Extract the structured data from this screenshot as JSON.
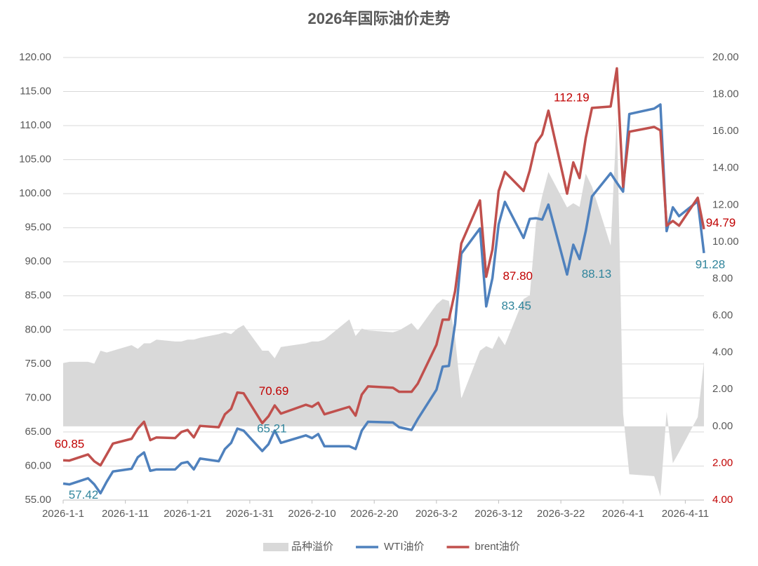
{
  "chart_data": {
    "type": "line",
    "title": "2026年国际油价走势",
    "xlim": [
      "2026-1-1",
      "2026-4-14"
    ],
    "xticks": [
      "2026-1-1",
      "2026-1-11",
      "2026-1-21",
      "2026-1-31",
      "2026-2-10",
      "2026-2-20",
      "2026-3-2",
      "2026-3-12",
      "2026-3-22",
      "2026-4-1",
      "2026-4-11"
    ],
    "ylim": [
      55,
      120
    ],
    "yticks": [
      {
        "value": 55,
        "label": "55.00"
      },
      {
        "value": 60,
        "label": "60.00"
      },
      {
        "value": 65,
        "label": "65.00"
      },
      {
        "value": 70,
        "label": "70.00"
      },
      {
        "value": 75,
        "label": "75.00"
      },
      {
        "value": 80,
        "label": "80.00"
      },
      {
        "value": 85,
        "label": "85.00"
      },
      {
        "value": 90,
        "label": "90.00"
      },
      {
        "value": 95,
        "label": "95.00"
      },
      {
        "value": 100,
        "label": "100.00"
      },
      {
        "value": 105,
        "label": "105.00"
      },
      {
        "value": 110,
        "label": "110.00"
      },
      {
        "value": 115,
        "label": "115.00"
      },
      {
        "value": 120,
        "label": "120.00"
      }
    ],
    "y2lim": [
      -4,
      20
    ],
    "y2ticks": [
      {
        "value": -4,
        "label": "4.00"
      },
      {
        "value": -2,
        "label": "2.00"
      },
      {
        "value": 0,
        "label": "0.00"
      },
      {
        "value": 2,
        "label": "2.00"
      },
      {
        "value": 4,
        "label": "4.00"
      },
      {
        "value": 6,
        "label": "6.00"
      },
      {
        "value": 8,
        "label": "8.00"
      },
      {
        "value": 10,
        "label": "10.00"
      },
      {
        "value": 12,
        "label": "12.00"
      },
      {
        "value": 14,
        "label": "14.00"
      },
      {
        "value": 16,
        "label": "16.00"
      },
      {
        "value": 18,
        "label": "18.00"
      },
      {
        "value": 20,
        "label": "20.00"
      }
    ],
    "y2_negative_color": "#c00000",
    "grid": true,
    "legend": "bottom",
    "x": [
      "2026-1-1",
      "2026-1-2",
      "2026-1-5",
      "2026-1-6",
      "2026-1-7",
      "2026-1-8",
      "2026-1-9",
      "2026-1-12",
      "2026-1-13",
      "2026-1-14",
      "2026-1-15",
      "2026-1-16",
      "2026-1-19",
      "2026-1-20",
      "2026-1-21",
      "2026-1-22",
      "2026-1-23",
      "2026-1-26",
      "2026-1-27",
      "2026-1-28",
      "2026-1-29",
      "2026-1-30",
      "2026-2-2",
      "2026-2-3",
      "2026-2-4",
      "2026-2-5",
      "2026-2-9",
      "2026-2-10",
      "2026-2-11",
      "2026-2-12",
      "2026-2-16",
      "2026-2-17",
      "2026-2-18",
      "2026-2-19",
      "2026-2-23",
      "2026-2-24",
      "2026-2-26",
      "2026-2-27",
      "2026-3-2",
      "2026-3-3",
      "2026-3-4",
      "2026-3-5",
      "2026-3-6",
      "2026-3-9",
      "2026-3-10",
      "2026-3-11",
      "2026-3-12",
      "2026-3-13",
      "2026-3-16",
      "2026-3-17",
      "2026-3-18",
      "2026-3-19",
      "2026-3-20",
      "2026-3-23",
      "2026-3-24",
      "2026-3-25",
      "2026-3-26",
      "2026-3-27",
      "2026-3-30",
      "2026-3-31",
      "2026-4-1",
      "2026-4-2",
      "2026-4-6",
      "2026-4-7",
      "2026-4-8",
      "2026-4-9",
      "2026-4-10",
      "2026-4-13",
      "2026-4-14"
    ],
    "series": [
      {
        "name": "品种溢价",
        "type": "area",
        "axis": "y2",
        "color": "#d9d9d9",
        "values": [
          3.43,
          3.5,
          3.5,
          3.4,
          4.1,
          4.0,
          4.1,
          4.4,
          4.2,
          4.5,
          4.5,
          4.7,
          4.6,
          4.6,
          4.7,
          4.7,
          4.8,
          5.0,
          5.1,
          5.0,
          5.3,
          5.49,
          4.1,
          4.1,
          3.69,
          4.3,
          4.5,
          4.6,
          4.6,
          4.7,
          5.8,
          4.9,
          5.3,
          5.2,
          5.1,
          5.2,
          5.6,
          5.2,
          6.6,
          6.9,
          6.8,
          4.8,
          1.5,
          4.1,
          4.35,
          4.2,
          4.9,
          4.4,
          6.9,
          7.1,
          11.0,
          12.5,
          13.79,
          11.87,
          12.1,
          11.9,
          13.7,
          13.0,
          9.8,
          16.8,
          0.7,
          -2.6,
          -2.7,
          -3.8,
          0.8,
          -2.0,
          -1.4,
          0.5,
          3.51
        ]
      },
      {
        "name": "WTI油价",
        "type": "line",
        "color": "#4f81bd",
        "label_color": "#31859c",
        "values": [
          57.42,
          57.3,
          58.2,
          57.3,
          56.0,
          57.7,
          59.2,
          59.6,
          61.3,
          62.0,
          59.3,
          59.5,
          59.5,
          60.4,
          60.6,
          59.5,
          61.1,
          60.7,
          62.5,
          63.4,
          65.5,
          65.2,
          62.2,
          63.2,
          65.21,
          63.4,
          64.5,
          64.1,
          64.7,
          62.9,
          62.9,
          62.5,
          65.2,
          66.5,
          66.4,
          65.7,
          65.3,
          66.9,
          71.2,
          74.6,
          74.7,
          80.9,
          91.2,
          94.9,
          83.45,
          87.6,
          95.5,
          98.8,
          93.5,
          96.3,
          96.4,
          96.2,
          98.4,
          88.13,
          92.5,
          90.4,
          94.5,
          99.6,
          103.0,
          101.6,
          100.3,
          111.7,
          112.5,
          113.1,
          94.5,
          98.0,
          96.7,
          98.9,
          91.28
        ],
        "value_labels": [
          "57.42",
          null,
          null,
          null,
          null,
          null,
          null,
          null,
          null,
          null,
          null,
          null,
          null,
          null,
          null,
          null,
          null,
          null,
          null,
          null,
          null,
          null,
          null,
          null,
          "65.21",
          null,
          null,
          null,
          null,
          null,
          null,
          null,
          null,
          null,
          null,
          null,
          null,
          null,
          null,
          null,
          null,
          null,
          null,
          null,
          "83.45",
          null,
          null,
          null,
          null,
          null,
          null,
          null,
          null,
          "88.13",
          null,
          null,
          null,
          null,
          null,
          null,
          null,
          null,
          null,
          null,
          null,
          null,
          null,
          null,
          "91.28"
        ]
      },
      {
        "name": "brent油价",
        "type": "line",
        "color": "#c0504d",
        "label_color": "#c00000",
        "values": [
          60.85,
          60.8,
          61.7,
          60.7,
          60.1,
          61.7,
          63.3,
          64.0,
          65.5,
          66.5,
          63.8,
          64.2,
          64.1,
          65.0,
          65.3,
          64.2,
          65.9,
          65.7,
          67.6,
          68.4,
          70.8,
          70.69,
          66.3,
          67.3,
          68.9,
          67.7,
          69.0,
          68.7,
          69.3,
          67.6,
          68.7,
          67.4,
          70.5,
          71.7,
          71.5,
          70.9,
          70.9,
          72.1,
          77.8,
          81.5,
          81.5,
          85.7,
          92.7,
          99.0,
          87.8,
          91.8,
          100.4,
          103.2,
          100.4,
          103.4,
          107.4,
          108.7,
          112.19,
          100.0,
          104.6,
          102.3,
          108.2,
          112.6,
          112.8,
          118.4,
          101.0,
          109.1,
          109.8,
          109.3,
          95.3,
          96.0,
          95.3,
          99.4,
          94.79
        ],
        "value_labels": [
          "60.85",
          null,
          null,
          null,
          null,
          null,
          null,
          null,
          null,
          null,
          null,
          null,
          null,
          null,
          null,
          null,
          null,
          null,
          null,
          null,
          null,
          "70.69",
          null,
          null,
          null,
          null,
          null,
          null,
          null,
          null,
          null,
          null,
          null,
          null,
          null,
          null,
          null,
          null,
          null,
          null,
          null,
          null,
          null,
          null,
          "87.80",
          null,
          null,
          null,
          null,
          null,
          null,
          null,
          "112.19",
          null,
          null,
          null,
          null,
          null,
          null,
          null,
          null,
          null,
          null,
          null,
          null,
          null,
          null,
          null,
          "94.79"
        ]
      }
    ]
  }
}
